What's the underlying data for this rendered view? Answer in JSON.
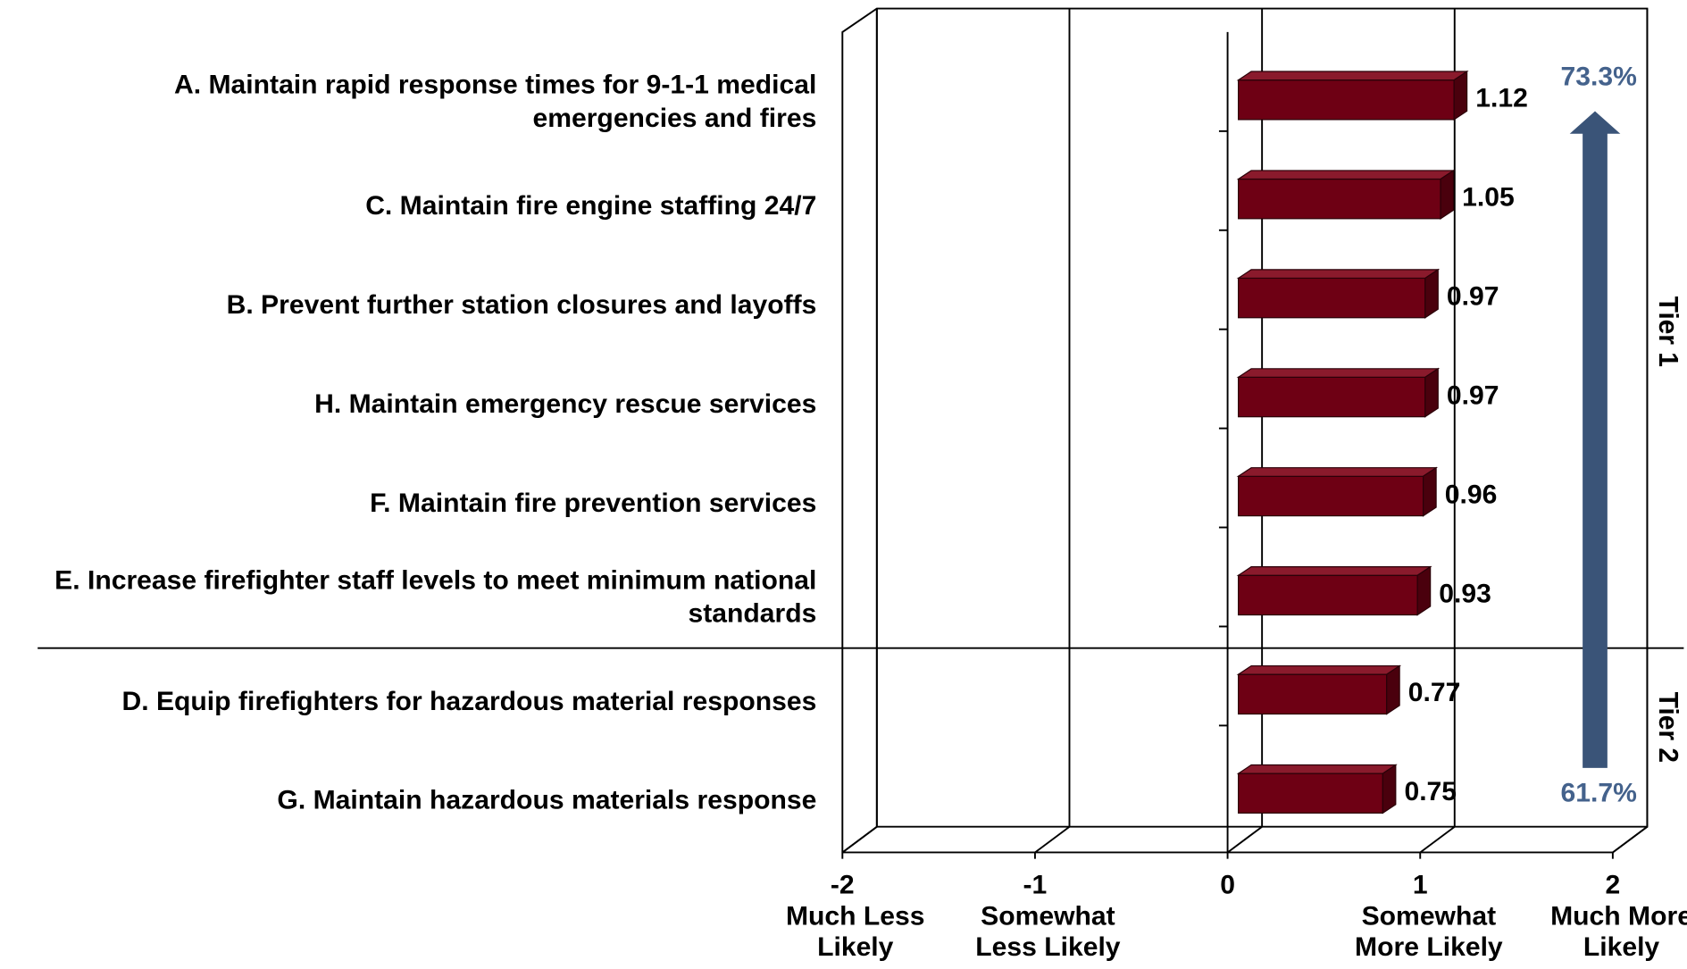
{
  "chart_data": {
    "type": "bar3d-horizontal",
    "categories": [
      [
        "A. Maintain rapid response times for 9-1-1 medical",
        "emergencies and fires"
      ],
      [
        "C. Maintain fire engine staffing 24/7"
      ],
      [
        "B. Prevent further station closures and layoffs"
      ],
      [
        "H. Maintain emergency rescue services"
      ],
      [
        "F. Maintain fire prevention services"
      ],
      [
        "E. Increase firefighter staff levels to meet minimum national",
        "standards"
      ],
      [
        "D. Equip firefighters for hazardous material responses"
      ],
      [
        "G. Maintain hazardous materials response"
      ]
    ],
    "values": [
      1.12,
      1.05,
      0.97,
      0.97,
      0.96,
      0.93,
      0.77,
      0.75
    ],
    "color": "#6e0014",
    "xlim": [
      -2,
      2
    ],
    "xticks": [
      -2,
      -1,
      0,
      1,
      2
    ],
    "xtick_captions": [
      [
        "Much Less",
        "Likely"
      ],
      [
        "Somewhat",
        "Less Likely"
      ],
      null,
      [
        "Somewhat",
        "More Likely"
      ],
      [
        "Much More",
        "Likely"
      ]
    ],
    "grid": true,
    "annotations": {
      "top_percent": "73.3%",
      "bottom_percent": "61.7%",
      "tier1": "Tier 1",
      "tier2": "Tier 2"
    },
    "arrow_color": "#3a5478"
  }
}
